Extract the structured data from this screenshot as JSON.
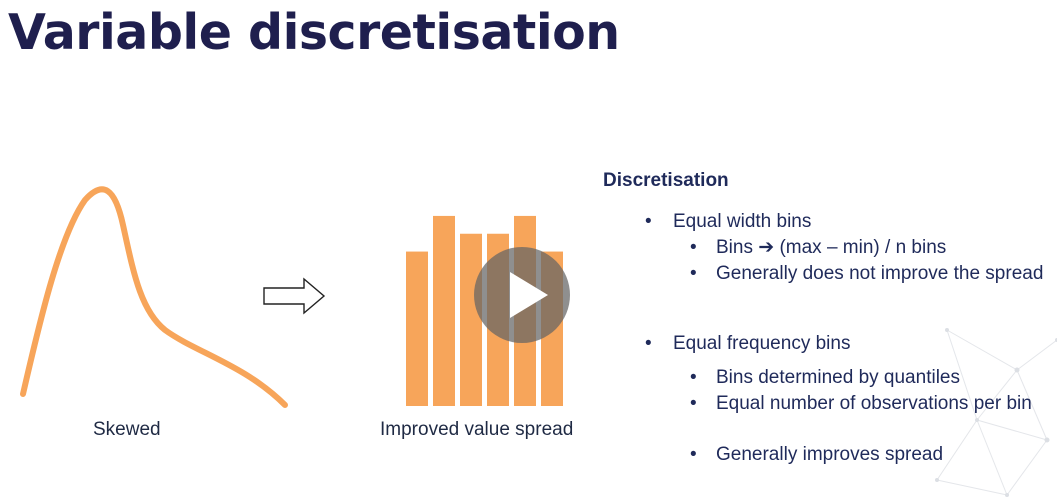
{
  "slide": {
    "title": "Variable discretisation"
  },
  "left_figure": {
    "caption": "Skewed",
    "curve_color": "#f7a55a"
  },
  "transform_arrow": {
    "icon": "right-arrow-outline-icon"
  },
  "right_figure": {
    "caption": "Improved value spread",
    "bar_color": "#f7a55a",
    "bar_levels": [
      0.78,
      0.96,
      0.87,
      0.87,
      0.96,
      0.78
    ]
  },
  "video": {
    "play_icon": "play-icon"
  },
  "notes": {
    "heading": "Discretisation",
    "bullet_char": "•",
    "equal_width": {
      "label": "Equal width bins",
      "sub": [
        {
          "prefix": "Bins ",
          "arrow": "➔",
          "suffix": " (max – min) / n bins"
        },
        {
          "text": "Generally does not improve the spread"
        }
      ]
    },
    "equal_frequency": {
      "label": "Equal frequency bins",
      "sub": [
        {
          "text": "Bins determined by quantiles"
        },
        {
          "text": "Equal number of observations per bin"
        },
        {
          "text": "Generally improves spread"
        }
      ]
    }
  }
}
